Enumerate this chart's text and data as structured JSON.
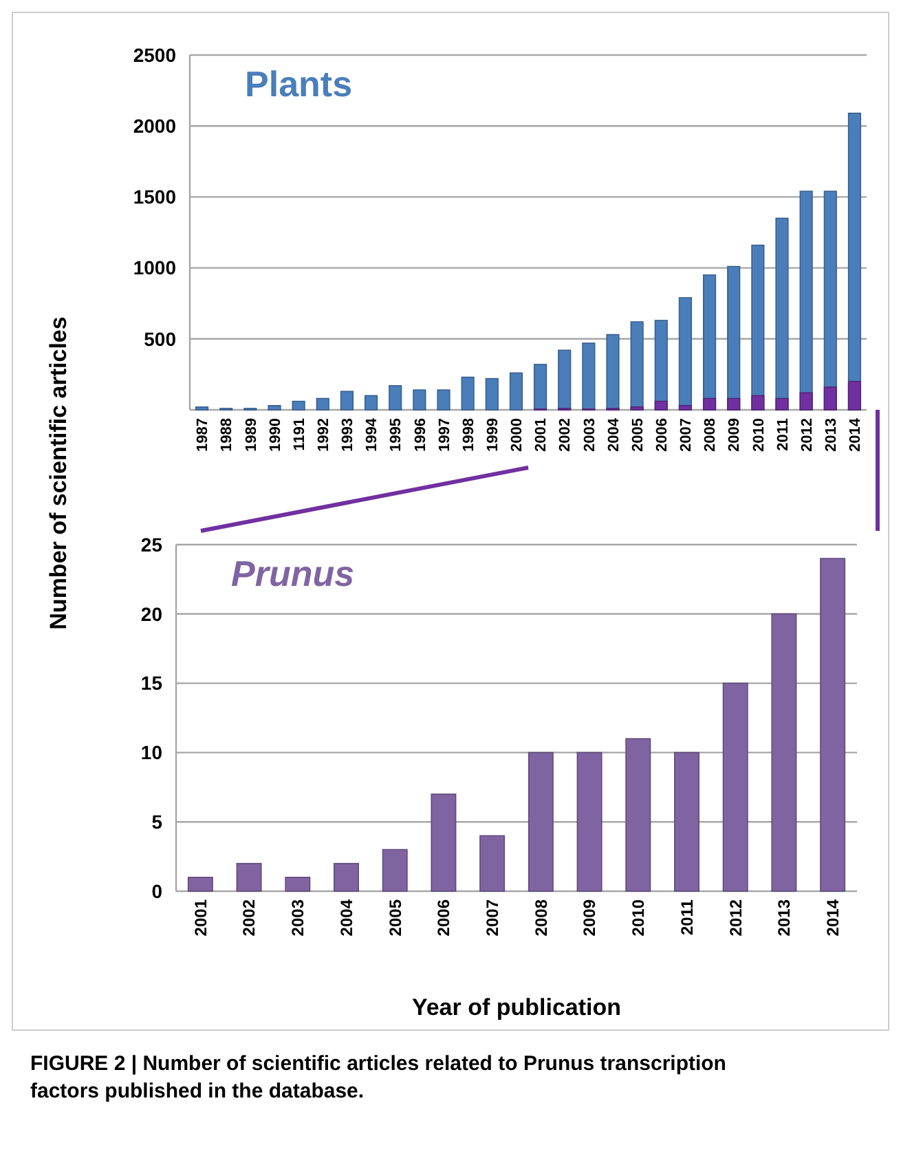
{
  "chart_data": [
    {
      "type": "bar",
      "ylabel": "Number of scientific articles",
      "categories": [
        "1987",
        "1988",
        "1989",
        "1990",
        "1191",
        "1992",
        "1993",
        "1994",
        "1995",
        "1996",
        "1997",
        "1998",
        "1999",
        "2000",
        "2001",
        "2002",
        "2003",
        "2004",
        "2005",
        "2006",
        "2007",
        "2008",
        "2009",
        "2010",
        "2011",
        "2012",
        "2013",
        "2014"
      ],
      "series": [
        {
          "name": "Plants",
          "color": "#4a7ebb",
          "values": [
            20,
            10,
            10,
            30,
            60,
            80,
            130,
            100,
            170,
            140,
            140,
            230,
            220,
            260,
            320,
            420,
            470,
            530,
            620,
            630,
            790,
            950,
            1010,
            1160,
            1350,
            1540,
            1540,
            2090
          ]
        },
        {
          "color": "#7030a0",
          "values": [
            null,
            null,
            null,
            null,
            null,
            null,
            null,
            null,
            null,
            null,
            null,
            null,
            null,
            null,
            5,
            10,
            5,
            10,
            20,
            60,
            30,
            80,
            80,
            100,
            80,
            120,
            160,
            200
          ]
        }
      ],
      "ylim": [
        0,
        2500
      ],
      "yticks": [
        {
          "value": 0,
          "label": null
        },
        500,
        1000,
        1500,
        2000,
        2500
      ],
      "grid": "y"
    },
    {
      "type": "bar",
      "xlabel": "Year of publication",
      "categories": [
        "2001",
        "2002",
        "2003",
        "2004",
        "2005",
        "2006",
        "2007",
        "2008",
        "2009",
        "2010",
        "2011",
        "2012",
        "2013",
        "2014"
      ],
      "series": [
        {
          "name": "Prunus",
          "color": "#8064a2",
          "values": [
            1,
            2,
            1,
            2,
            3,
            7,
            4,
            10,
            10,
            11,
            10,
            15,
            20,
            24
          ]
        }
      ],
      "ylim": [
        0,
        25
      ],
      "yticks": [
        0,
        5,
        10,
        15,
        20,
        25
      ],
      "grid": "y",
      "annotations": [
        "FIGURE 2 | Number of scientific articles related to Prunus transcription factors published in the database."
      ]
    }
  ]
}
